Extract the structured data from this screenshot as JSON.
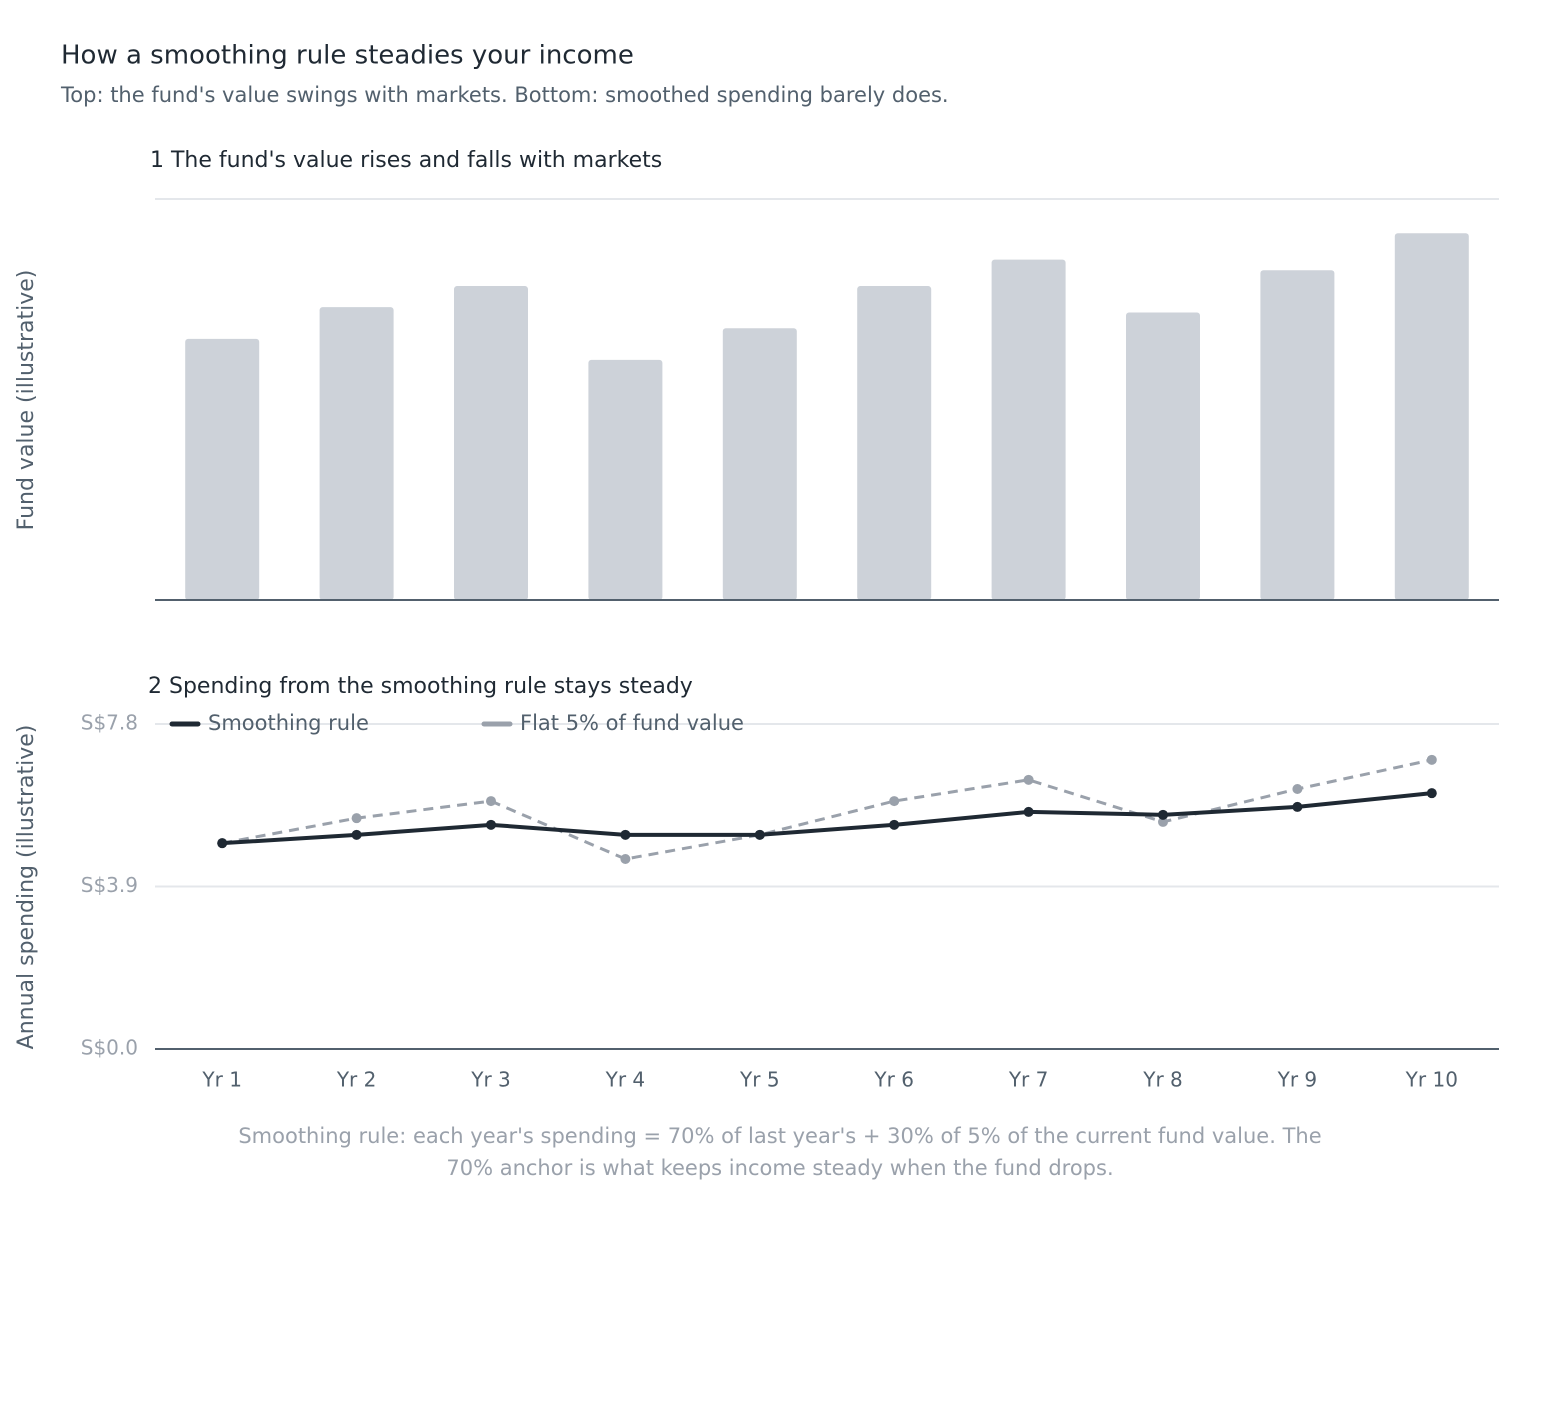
{
  "title": "How a smoothing rule steadies your income",
  "subtitle": "Top: the fund's value swings with markets. Bottom: smoothed spending barely does.",
  "note": "Smoothing rule: each year's spending = 70% of last year's + 30% of 5% of the current fund value. The 70% anchor is what keeps income steady when the fund drops.",
  "chart_data": [
    {
      "type": "bar",
      "title": "1 The fund's value rises and falls with markets",
      "y_label": "Fund value (illustrative)",
      "values": [
        99,
        111,
        119,
        91,
        103,
        119,
        129,
        109,
        125,
        139
      ],
      "color": "#cdd2d9",
      "ylim": [
        0,
        152
      ],
      "grid": true
    },
    {
      "type": "line",
      "title": "2 Spending from the smoothing rule stays steady",
      "y_label": "Annual spending (illustrative)",
      "categories": [
        "Yr 1",
        "Yr 2",
        "Yr 3",
        "Yr 4",
        "Yr 5",
        "Yr 6",
        "Yr 7",
        "Yr 8",
        "Yr 9",
        "Yr 10"
      ],
      "series": [
        {
          "name": "Smoothing rule",
          "color": "#1f2933",
          "dashed": false,
          "values": [
            4.94,
            5.14,
            5.38,
            5.14,
            5.14,
            5.38,
            5.69,
            5.62,
            5.81,
            6.14
          ]
        },
        {
          "name": "Flat 5% of fund value",
          "color": "#9aa1ab",
          "dashed": true,
          "values": [
            4.94,
            5.54,
            5.95,
            4.56,
            5.14,
            5.95,
            6.46,
            5.45,
            6.24,
            6.94
          ]
        }
      ],
      "ylim": [
        0,
        7.8
      ],
      "yticks": [
        {
          "value": 0,
          "label": "S$0.0"
        },
        {
          "value": 3.9,
          "label": "S$3.9"
        },
        {
          "value": 7.8,
          "label": "S$7.8"
        }
      ],
      "grid": true,
      "legend": "top-left"
    }
  ]
}
